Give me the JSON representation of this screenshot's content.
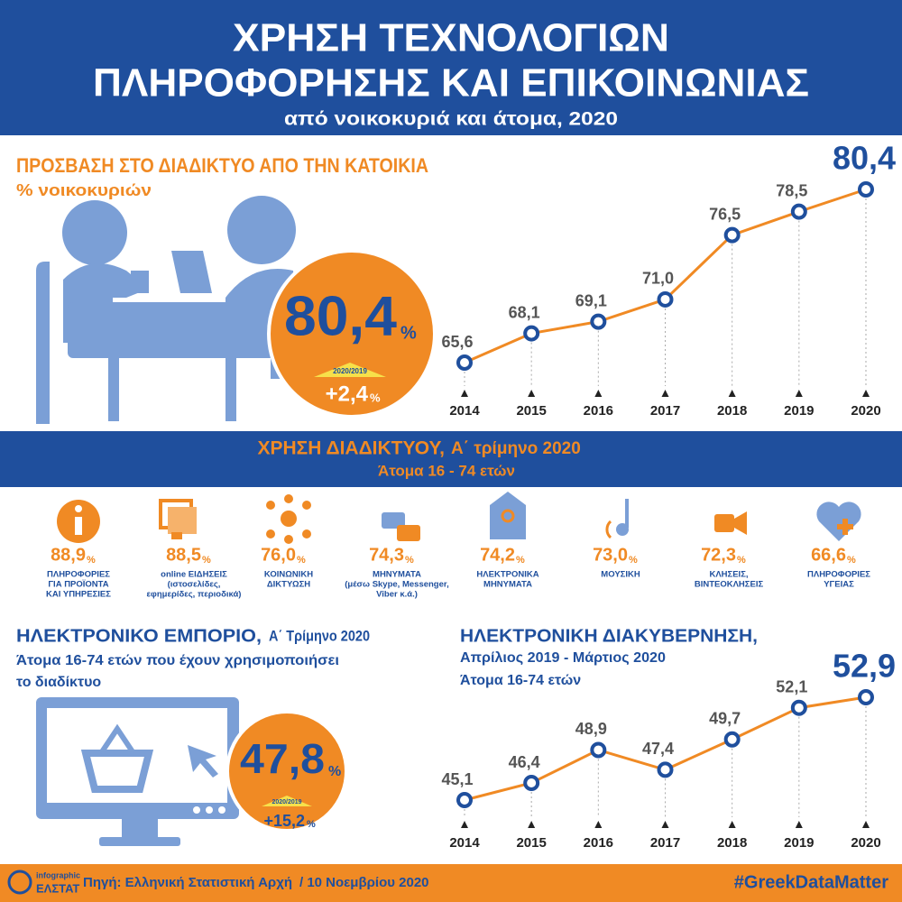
{
  "header": {
    "title_line1": "ΧΡΗΣΗ ΤΕΧΝΟΛΟΓΙΩΝ",
    "title_line2": "ΠΛΗΡΟΦΟΡΗΣΗΣ ΚΑΙ ΕΠΙΚΟΙΝΩΝΙΑΣ",
    "subtitle": "από νοικοκυριά και άτομα, 2020"
  },
  "access": {
    "title": "ΠΡΟΣΒΑΣΗ ΣΤΟ ΔΙΑΔΙΚΤΥΟ ΑΠΟ ΤΗΝ ΚΑΤΟΙΚΙΑ",
    "subtitle": "% νοικοκυριών",
    "highlight": {
      "value": "80,4",
      "unit": "%",
      "change_label": "2020/2019",
      "change": "+2,4",
      "change_unit": "%"
    },
    "chart": {
      "type": "line",
      "x": [
        "2014",
        "2015",
        "2016",
        "2017",
        "2018",
        "2019",
        "2020"
      ],
      "values": [
        65.6,
        68.1,
        69.1,
        71.0,
        76.5,
        78.5,
        80.4
      ],
      "value_labels": [
        "65,6",
        "68,1",
        "69,1",
        "71,0",
        "76,5",
        "78,5",
        "80,4"
      ],
      "color": "#f08a24"
    }
  },
  "internet_use": {
    "title": "ΧΡΗΣΗ ΔΙΑΔΙΚΤΥΟΥ,",
    "period": "Α΄ τρίμηνο 2020",
    "subtitle": "Άτομα 16 - 74 ετών",
    "items": [
      {
        "value": "88,9",
        "unit": "%",
        "label": [
          "ΠΛΗΡΟΦΟΡΙΕΣ",
          "ΓΙΑ ΠΡΟΪΟΝΤΑ",
          "ΚΑΙ ΥΠΗΡΕΣΙΕΣ"
        ]
      },
      {
        "value": "88,5",
        "unit": "%",
        "label": [
          "online ΕΙΔΗΣΕΙΣ",
          "(ιστοσελίδες,",
          "εφημερίδες, περιοδικά)"
        ]
      },
      {
        "value": "76,0",
        "unit": "%",
        "label": [
          "ΚΟΙΝΩΝΙΚΗ",
          "ΔΙΚΤΥΩΣΗ"
        ]
      },
      {
        "value": "74,3",
        "unit": "%",
        "label": [
          "ΜΗΝΥΜΑΤΑ",
          "(μέσω Skype, Messenger,",
          "Viber κ.ά.)"
        ]
      },
      {
        "value": "74,2",
        "unit": "%",
        "label": [
          "ΗΛΕΚΤΡΟΝΙΚΑ",
          "ΜΗΝΥΜΑΤΑ"
        ]
      },
      {
        "value": "73,0",
        "unit": "%",
        "label": [
          "ΜΟΥΣΙΚΗ"
        ]
      },
      {
        "value": "72,3",
        "unit": "%",
        "label": [
          "ΚΛΗΣΕΙΣ,",
          "ΒΙΝΤΕΟΚΛΗΣΕΙΣ"
        ]
      },
      {
        "value": "66,6",
        "unit": "%",
        "label": [
          "ΠΛΗΡΟΦΟΡΙΕΣ",
          "ΥΓΕΙΑΣ"
        ]
      }
    ]
  },
  "ecommerce": {
    "title": "ΗΛΕΚΤΡΟΝΙΚΟ ΕΜΠΟΡΙΟ,",
    "period": "Α΄ Τρίμηνο 2020",
    "subtitle": [
      "Άτομα 16-74 ετών που έχουν χρησιμοποιήσει",
      "το διαδίκτυο"
    ],
    "highlight": {
      "value": "47,8",
      "unit": "%",
      "change_label": "2020/2019",
      "change": "+15,2",
      "change_unit": "%"
    }
  },
  "egov": {
    "title": "ΗΛΕΚΤΡΟΝΙΚΗ ΔΙΑΚΥΒΕΡΝΗΣΗ,",
    "period": "Απρίλιος 2019 - Μάρτιος 2020",
    "subtitle": "Άτομα 16-74 ετών",
    "chart": {
      "type": "line",
      "x": [
        "2014",
        "2015",
        "2016",
        "2017",
        "2018",
        "2019",
        "2020"
      ],
      "values": [
        45.1,
        46.4,
        48.9,
        47.4,
        49.7,
        52.1,
        52.9
      ],
      "value_labels": [
        "45,1",
        "46,4",
        "48,9",
        "47,4",
        "49,7",
        "52,1",
        "52,9"
      ],
      "color": "#f08a24"
    }
  },
  "footer": {
    "logo_top": "infographic",
    "logo_bottom": "ΕΛΣΤΑΤ",
    "source": "Πηγή: Ελληνική Στατιστική Αρχή",
    "date": "/ 10 Νοεμβρίου 2020",
    "hashtag": "#GreekDataMatter"
  }
}
